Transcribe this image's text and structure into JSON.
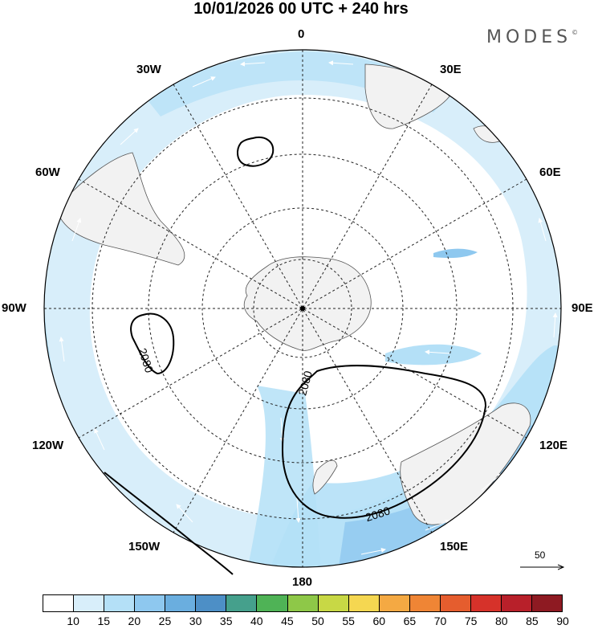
{
  "title": "10/01/2026  00 UTC  + 240 hrs",
  "brand": {
    "name": "MODES",
    "mark": "©"
  },
  "longitude_labels": {
    "n0": "0",
    "n30e": "30E",
    "n60e": "60E",
    "n90e": "90E",
    "n120e": "120E",
    "n150e": "150E",
    "n180": "180",
    "n150w": "150W",
    "n120w": "120W",
    "n90w": "90W",
    "n60w": "60W",
    "n30w": "30W"
  },
  "contours": {
    "label": "2080"
  },
  "reference_vector": {
    "value": "50"
  },
  "colorbar": {
    "colors": [
      "#ffffff",
      "#d8eefa",
      "#b4e0f7",
      "#8ec8ef",
      "#6aaedf",
      "#4d8fc6",
      "#45a08c",
      "#4fb356",
      "#8ec848",
      "#c8d845",
      "#f5d751",
      "#f4a943",
      "#ef8535",
      "#e55d2e",
      "#d6322a",
      "#b8202a",
      "#8e1a22"
    ],
    "labels": [
      "10",
      "15",
      "20",
      "25",
      "30",
      "35",
      "40",
      "45",
      "50",
      "55",
      "60",
      "65",
      "70",
      "75",
      "80",
      "85",
      "90"
    ]
  }
}
